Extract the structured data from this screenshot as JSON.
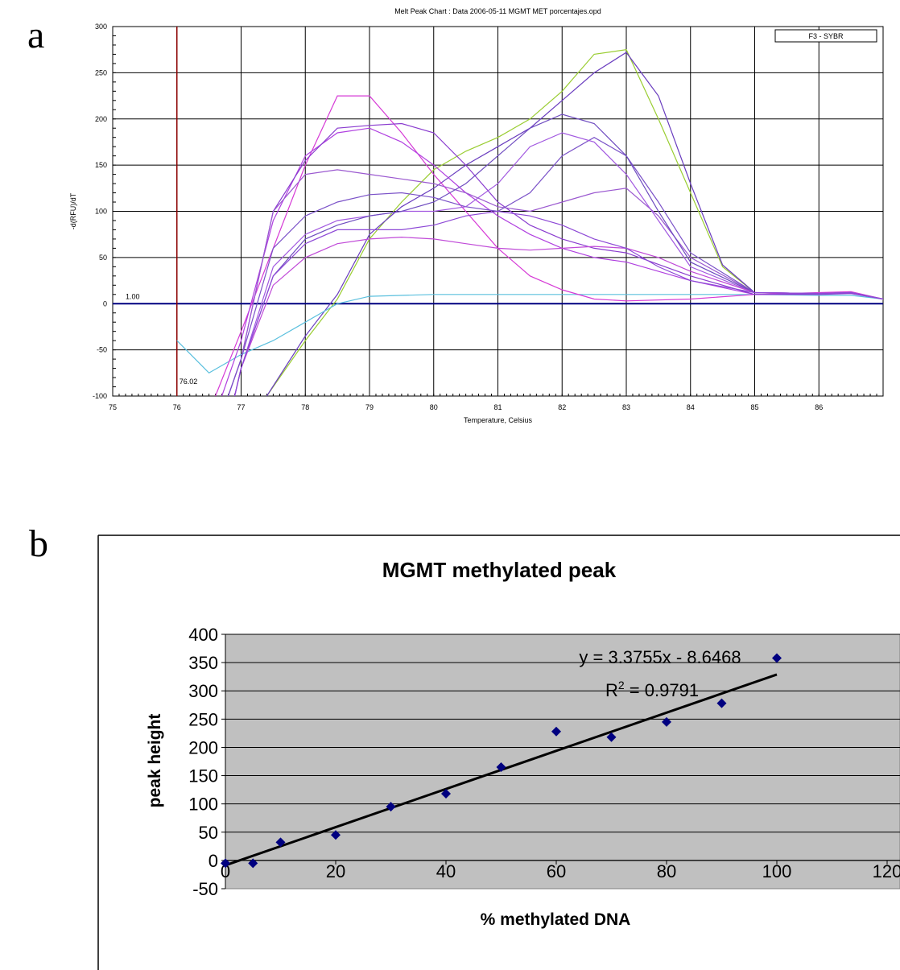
{
  "panels": {
    "a": "a",
    "b": "b"
  },
  "chart_data": [
    {
      "type": "line",
      "title": "Melt Peak Chart : Data 2006-05-11 MGMT MET porcentajes.opd",
      "xlabel": "Temperature, Celsius",
      "ylabel": "-d(RFU)/dT",
      "xlim": [
        75,
        87
      ],
      "ylim": [
        -100,
        300
      ],
      "xticks": [
        "75",
        "76",
        "77",
        "78",
        "79",
        "80",
        "81",
        "82",
        "83",
        "84",
        "85",
        "86"
      ],
      "yticks": [
        "300",
        "250",
        "200",
        "150",
        "100",
        "50",
        "0",
        "-50",
        "-100"
      ],
      "grid": true,
      "legend": "F3 - SYBR",
      "legend_position": "top-right",
      "threshold": {
        "value": 0,
        "label": "1.00",
        "color": "#000080"
      },
      "marker": {
        "x": 76,
        "label": "76.02",
        "color": "#8b0000"
      },
      "series": [
        {
          "color": "#9acd32",
          "values": [
            [
              77.4,
              -100
            ],
            [
              78,
              -40
            ],
            [
              78.5,
              5
            ],
            [
              79,
              70
            ],
            [
              79.5,
              110
            ],
            [
              80,
              145
            ],
            [
              80.5,
              165
            ],
            [
              81,
              180
            ],
            [
              81.5,
              200
            ],
            [
              82,
              230
            ],
            [
              82.5,
              270
            ],
            [
              83,
              275
            ],
            [
              83.5,
              200
            ],
            [
              84,
              120
            ],
            [
              84.5,
              40
            ],
            [
              85,
              12
            ],
            [
              85.5,
              11
            ],
            [
              86,
              11
            ],
            [
              86.5,
              12
            ],
            [
              87,
              5
            ]
          ]
        },
        {
          "color": "#6a3dbf",
          "values": [
            [
              77.4,
              -100
            ],
            [
              78,
              -35
            ],
            [
              78.5,
              10
            ],
            [
              79,
              75
            ],
            [
              79.5,
              105
            ],
            [
              80,
              125
            ],
            [
              80.5,
              150
            ],
            [
              81,
              170
            ],
            [
              81.5,
              190
            ],
            [
              82,
              220
            ],
            [
              82.5,
              250
            ],
            [
              83,
              272
            ],
            [
              83.5,
              225
            ],
            [
              84,
              130
            ],
            [
              84.5,
              42
            ],
            [
              85,
              12
            ],
            [
              85.5,
              11
            ],
            [
              86,
              11
            ],
            [
              86.5,
              12
            ],
            [
              87,
              5
            ]
          ]
        },
        {
          "color": "#5bc0de",
          "values": [
            [
              76,
              -40
            ],
            [
              76.5,
              -75
            ],
            [
              77,
              -55
            ],
            [
              77.5,
              -40
            ],
            [
              78,
              -20
            ],
            [
              78.5,
              0
            ],
            [
              79,
              8
            ],
            [
              80,
              10
            ],
            [
              81,
              10
            ],
            [
              82,
              10
            ],
            [
              83,
              10
            ],
            [
              84,
              10
            ],
            [
              85,
              10
            ],
            [
              86,
              9
            ],
            [
              86.5,
              9
            ],
            [
              87,
              5
            ]
          ]
        },
        {
          "color": "#d63ad6",
          "values": [
            [
              76.6,
              -100
            ],
            [
              77,
              -30
            ],
            [
              77.5,
              60
            ],
            [
              78,
              150
            ],
            [
              78.5,
              225
            ],
            [
              79,
              225
            ],
            [
              79.5,
              185
            ],
            [
              80,
              140
            ],
            [
              80.5,
              100
            ],
            [
              81,
              60
            ],
            [
              81.5,
              30
            ],
            [
              82,
              15
            ],
            [
              82.5,
              5
            ],
            [
              83,
              3
            ],
            [
              84,
              5
            ],
            [
              85,
              10
            ],
            [
              86,
              12
            ],
            [
              86.5,
              13
            ],
            [
              87,
              5
            ]
          ]
        },
        {
          "color": "#b040e0",
          "values": [
            [
              76.7,
              -100
            ],
            [
              77,
              -40
            ],
            [
              77.5,
              90
            ],
            [
              78,
              160
            ],
            [
              78.5,
              185
            ],
            [
              79,
              190
            ],
            [
              79.5,
              175
            ],
            [
              80,
              150
            ],
            [
              80.5,
              120
            ],
            [
              81,
              95
            ],
            [
              81.5,
              75
            ],
            [
              82,
              60
            ],
            [
              82.5,
              50
            ],
            [
              83,
              45
            ],
            [
              84,
              25
            ],
            [
              85,
              10
            ],
            [
              86,
              11
            ],
            [
              86.5,
              12
            ],
            [
              87,
              5
            ]
          ]
        },
        {
          "color": "#8a3ccf",
          "values": [
            [
              76.8,
              -100
            ],
            [
              77,
              -60
            ],
            [
              77.5,
              100
            ],
            [
              78,
              155
            ],
            [
              78.5,
              190
            ],
            [
              79,
              193
            ],
            [
              79.5,
              195
            ],
            [
              80,
              185
            ],
            [
              80.5,
              150
            ],
            [
              81,
              110
            ],
            [
              81.5,
              85
            ],
            [
              82,
              70
            ],
            [
              82.5,
              60
            ],
            [
              83,
              55
            ],
            [
              84,
              30
            ],
            [
              85,
              10
            ],
            [
              86,
              10
            ],
            [
              86.5,
              11
            ],
            [
              87,
              5
            ]
          ]
        },
        {
          "color": "#9b59d0",
          "values": [
            [
              76.8,
              -100
            ],
            [
              77,
              -60
            ],
            [
              77.5,
              100
            ],
            [
              78,
              140
            ],
            [
              78.5,
              145
            ],
            [
              79,
              140
            ],
            [
              79.5,
              135
            ],
            [
              80,
              130
            ],
            [
              80.5,
              120
            ],
            [
              81,
              105
            ],
            [
              81.5,
              100
            ],
            [
              82,
              110
            ],
            [
              82.5,
              120
            ],
            [
              83,
              125
            ],
            [
              83.5,
              95
            ],
            [
              84,
              50
            ],
            [
              85,
              12
            ],
            [
              86,
              11
            ],
            [
              86.5,
              12
            ],
            [
              87,
              5
            ]
          ]
        },
        {
          "color": "#7b52c8",
          "values": [
            [
              76.8,
              -100
            ],
            [
              77,
              -60
            ],
            [
              77.5,
              60
            ],
            [
              78,
              95
            ],
            [
              78.5,
              110
            ],
            [
              79,
              118
            ],
            [
              79.5,
              120
            ],
            [
              80,
              115
            ],
            [
              80.5,
              105
            ],
            [
              81,
              100
            ],
            [
              81.5,
              120
            ],
            [
              82,
              160
            ],
            [
              82.5,
              180
            ],
            [
              83,
              160
            ],
            [
              83.5,
              110
            ],
            [
              84,
              55
            ],
            [
              85,
              12
            ],
            [
              86,
              11
            ],
            [
              86.5,
              12
            ],
            [
              87,
              5
            ]
          ]
        },
        {
          "color": "#a259e0",
          "values": [
            [
              76.9,
              -100
            ],
            [
              77,
              -70
            ],
            [
              77.5,
              40
            ],
            [
              78,
              75
            ],
            [
              78.5,
              90
            ],
            [
              79,
              95
            ],
            [
              79.5,
              100
            ],
            [
              80,
              100
            ],
            [
              80.5,
              105
            ],
            [
              81,
              130
            ],
            [
              81.5,
              170
            ],
            [
              82,
              185
            ],
            [
              82.5,
              175
            ],
            [
              83,
              140
            ],
            [
              83.5,
              90
            ],
            [
              84,
              40
            ],
            [
              85,
              12
            ],
            [
              86,
              11
            ],
            [
              86.5,
              12
            ],
            [
              87,
              5
            ]
          ]
        },
        {
          "color": "#6f4cc0",
          "values": [
            [
              76.9,
              -100
            ],
            [
              77,
              -70
            ],
            [
              77.5,
              30
            ],
            [
              78,
              70
            ],
            [
              78.5,
              85
            ],
            [
              79,
              95
            ],
            [
              79.5,
              100
            ],
            [
              80,
              110
            ],
            [
              80.5,
              130
            ],
            [
              81,
              160
            ],
            [
              81.5,
              190
            ],
            [
              82,
              205
            ],
            [
              82.5,
              195
            ],
            [
              83,
              160
            ],
            [
              83.5,
              100
            ],
            [
              84,
              45
            ],
            [
              85,
              12
            ],
            [
              86,
              11
            ],
            [
              86.5,
              12
            ],
            [
              87,
              5
            ]
          ]
        },
        {
          "color": "#c04ad8",
          "values": [
            [
              76.9,
              -100
            ],
            [
              77,
              -70
            ],
            [
              77.5,
              20
            ],
            [
              78,
              50
            ],
            [
              78.5,
              65
            ],
            [
              79,
              70
            ],
            [
              79.5,
              72
            ],
            [
              80,
              70
            ],
            [
              80.5,
              65
            ],
            [
              81,
              60
            ],
            [
              81.5,
              58
            ],
            [
              82,
              60
            ],
            [
              82.5,
              62
            ],
            [
              83,
              60
            ],
            [
              83.5,
              50
            ],
            [
              84,
              35
            ],
            [
              85,
              12
            ],
            [
              86,
              11
            ],
            [
              86.5,
              12
            ],
            [
              87,
              5
            ]
          ]
        },
        {
          "color": "#8d48d6",
          "values": [
            [
              76.9,
              -100
            ],
            [
              77,
              -70
            ],
            [
              77.5,
              30
            ],
            [
              78,
              65
            ],
            [
              78.5,
              80
            ],
            [
              79,
              80
            ],
            [
              79.5,
              80
            ],
            [
              80,
              85
            ],
            [
              80.5,
              95
            ],
            [
              81,
              100
            ],
            [
              81.5,
              95
            ],
            [
              82,
              85
            ],
            [
              82.5,
              70
            ],
            [
              83,
              60
            ],
            [
              83.5,
              40
            ],
            [
              84,
              25
            ],
            [
              85,
              12
            ],
            [
              86,
              11
            ],
            [
              86.5,
              12
            ],
            [
              87,
              5
            ]
          ]
        }
      ]
    },
    {
      "type": "scatter",
      "title": "MGMT methylated peak",
      "xlabel": "% methylated DNA",
      "ylabel": "peak height",
      "xlim": [
        0,
        120
      ],
      "ylim": [
        -50,
        400
      ],
      "xticks": [
        "0",
        "20",
        "40",
        "60",
        "80",
        "100",
        "120"
      ],
      "yticks": [
        "400",
        "350",
        "300",
        "250",
        "200",
        "150",
        "100",
        "50",
        "0",
        "-50"
      ],
      "grid": true,
      "trendline": {
        "slope": 3.3755,
        "intercept": -8.6468,
        "x_range": [
          0,
          100
        ]
      },
      "equation": "y = 3.3755x - 8.6468",
      "r2_prefix": "R",
      "r2_sup": "2",
      "r2_suffix": " = 0.9791",
      "point_color": "#000080",
      "points": [
        [
          0,
          -5
        ],
        [
          5,
          -5
        ],
        [
          10,
          32
        ],
        [
          20,
          45
        ],
        [
          30,
          95
        ],
        [
          40,
          118
        ],
        [
          50,
          165
        ],
        [
          60,
          228
        ],
        [
          70,
          218
        ],
        [
          80,
          245
        ],
        [
          90,
          278
        ],
        [
          100,
          358
        ]
      ]
    }
  ]
}
